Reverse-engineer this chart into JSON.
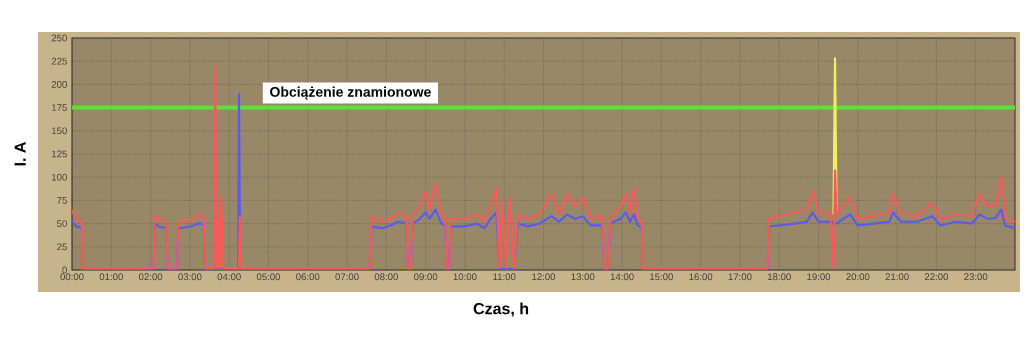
{
  "chart_data": {
    "type": "line",
    "xlabel": "Czas, h",
    "ylabel": "I. A",
    "xlim": [
      0,
      24
    ],
    "ylim": [
      0,
      250
    ],
    "xticks": [
      {
        "value": 0,
        "label": "00:00"
      },
      {
        "value": 1,
        "label": "01:00"
      },
      {
        "value": 2,
        "label": "02:00"
      },
      {
        "value": 3,
        "label": "03:00"
      },
      {
        "value": 4,
        "label": "04:00"
      },
      {
        "value": 5,
        "label": "05:00"
      },
      {
        "value": 6,
        "label": "06:00"
      },
      {
        "value": 7,
        "label": "07:00"
      },
      {
        "value": 8,
        "label": "08:00"
      },
      {
        "value": 9,
        "label": "09:00"
      },
      {
        "value": 10,
        "label": "10:00"
      },
      {
        "value": 11,
        "label": "11:00"
      },
      {
        "value": 12,
        "label": "12:00"
      },
      {
        "value": 13,
        "label": "13:00"
      },
      {
        "value": 14,
        "label": "14:00"
      },
      {
        "value": 15,
        "label": "15:00"
      },
      {
        "value": 16,
        "label": "16:00"
      },
      {
        "value": 17,
        "label": "17:00"
      },
      {
        "value": 18,
        "label": "18:00"
      },
      {
        "value": 19,
        "label": "19:00"
      },
      {
        "value": 20,
        "label": "20:00"
      },
      {
        "value": 21,
        "label": "21:00"
      },
      {
        "value": 22,
        "label": "22:00"
      },
      {
        "value": 23,
        "label": "23:00"
      }
    ],
    "yticks": [
      0,
      25,
      50,
      75,
      100,
      125,
      150,
      175,
      200,
      225,
      250
    ],
    "grid": true,
    "ref_lines": [
      {
        "axis": "y",
        "value": 175,
        "label": "Obciążenie znamionowe",
        "color": "#5ce03a"
      }
    ],
    "series": [
      {
        "color": "#5a5af0",
        "x": [
          0,
          0.1,
          0.2,
          0.25,
          0.27,
          2.08,
          2.1,
          2.25,
          2.4,
          2.43,
          2.68,
          2.7,
          2.9,
          3.1,
          3.2,
          3.35,
          3.38,
          4.23,
          4.25,
          4.28,
          7.6,
          7.62,
          7.9,
          8.1,
          8.3,
          8.5,
          8.55,
          8.62,
          8.67,
          8.85,
          9.0,
          9.1,
          9.25,
          9.4,
          9.5,
          9.53,
          9.6,
          9.63,
          10.0,
          10.3,
          10.5,
          10.65,
          10.8,
          10.88,
          10.95,
          11.05,
          11.15,
          11.25,
          11.35,
          11.6,
          11.9,
          12.2,
          12.4,
          12.6,
          12.8,
          13.0,
          13.2,
          13.5,
          13.55,
          13.65,
          13.7,
          13.95,
          14.1,
          14.2,
          14.3,
          14.4,
          14.5,
          14.53,
          17.7,
          17.73,
          18.0,
          18.4,
          18.7,
          18.85,
          19.0,
          19.3,
          19.46,
          19.8,
          20.0,
          20.4,
          20.8,
          20.9,
          21.1,
          21.5,
          21.9,
          22.1,
          22.5,
          22.9,
          23.1,
          23.3,
          23.5,
          23.65,
          23.75,
          24.0
        ],
        "values": [
          52,
          47,
          46,
          45,
          1,
          1,
          50,
          46,
          46,
          1,
          1,
          45,
          46,
          48,
          50,
          50,
          1,
          1,
          190,
          1,
          1,
          47,
          45,
          48,
          52,
          50,
          1,
          1,
          50,
          55,
          62,
          55,
          65,
          50,
          48,
          1,
          1,
          47,
          47,
          50,
          45,
          55,
          62,
          1,
          null,
          1,
          null,
          1,
          50,
          47,
          50,
          58,
          52,
          60,
          55,
          58,
          48,
          48,
          1,
          1,
          50,
          55,
          62,
          52,
          60,
          48,
          46,
          1,
          1,
          47,
          48,
          50,
          52,
          62,
          52,
          52,
          50,
          60,
          48,
          50,
          52,
          62,
          52,
          52,
          58,
          48,
          52,
          50,
          60,
          55,
          56,
          65,
          48,
          45
        ]
      },
      {
        "color": "#f0f060",
        "x": [
          19.38,
          19.42,
          19.46
        ],
        "values": [
          60,
          228,
          60
        ]
      },
      {
        "color": "#f85a5a",
        "x": [
          0,
          0.1,
          0.2,
          0.25,
          0.27,
          2.08,
          2.1,
          2.25,
          2.4,
          2.43,
          2.68,
          2.7,
          2.9,
          3.1,
          3.2,
          3.35,
          3.38,
          3.6,
          3.63,
          3.65,
          3.67,
          3.72,
          3.75,
          3.8,
          3.85,
          4.25,
          4.27,
          4.3,
          7.6,
          7.62,
          7.9,
          8.1,
          8.3,
          8.5,
          8.55,
          8.62,
          8.67,
          8.85,
          9.0,
          9.1,
          9.25,
          9.4,
          9.5,
          9.53,
          9.6,
          9.63,
          10.0,
          10.3,
          10.5,
          10.65,
          10.8,
          10.88,
          10.95,
          11.05,
          11.15,
          11.25,
          11.35,
          11.6,
          11.9,
          12.2,
          12.4,
          12.6,
          12.8,
          13.0,
          13.2,
          13.5,
          13.55,
          13.65,
          13.7,
          13.95,
          14.1,
          14.2,
          14.3,
          14.4,
          14.5,
          14.53,
          17.7,
          17.73,
          18.0,
          18.4,
          18.7,
          18.85,
          19.0,
          19.3,
          19.38,
          19.42,
          19.46,
          19.8,
          20.0,
          20.4,
          20.8,
          20.9,
          21.1,
          21.5,
          21.9,
          22.1,
          22.5,
          22.9,
          23.1,
          23.3,
          23.5,
          23.65,
          23.75,
          24.0
        ],
        "values": [
          65,
          55,
          52,
          50,
          2,
          2,
          58,
          55,
          52,
          2,
          2,
          52,
          53,
          55,
          60,
          57,
          2,
          2,
          60,
          220,
          2,
          55,
          2,
          78,
          2,
          2,
          57,
          2,
          2,
          57,
          52,
          55,
          62,
          58,
          2,
          2,
          58,
          68,
          85,
          65,
          92,
          60,
          58,
          2,
          2,
          55,
          55,
          60,
          52,
          70,
          88,
          2,
          75,
          2,
          80,
          2,
          60,
          55,
          60,
          82,
          60,
          82,
          68,
          78,
          55,
          58,
          2,
          2,
          58,
          68,
          82,
          60,
          88,
          55,
          52,
          2,
          2,
          55,
          58,
          62,
          65,
          85,
          62,
          62,
          2,
          107,
          60,
          78,
          55,
          58,
          62,
          82,
          60,
          58,
          72,
          55,
          60,
          58,
          82,
          68,
          70,
          100,
          55,
          52
        ]
      }
    ]
  }
}
